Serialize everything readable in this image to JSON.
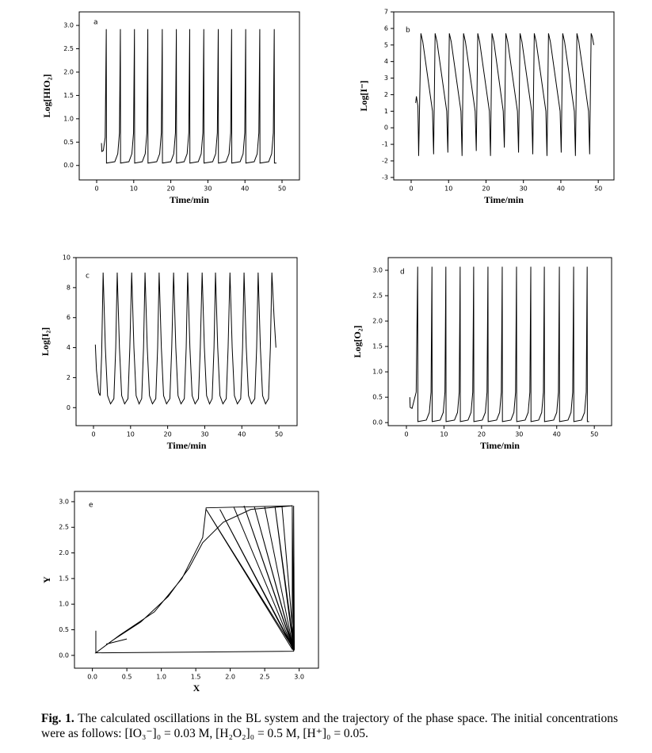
{
  "chart_data": [
    {
      "type": "line",
      "panel_label": "a",
      "xlabel": "Time/min",
      "ylabel": "Log[HIO₂]",
      "color": "#000000",
      "xlim": [
        -4.7,
        54.7
      ],
      "ylim": [
        -0.31,
        3.29
      ],
      "xticks": [
        0,
        10,
        20,
        30,
        40,
        50
      ],
      "yticks": [
        {
          "value": 0,
          "label": "0.0"
        },
        0.5,
        {
          "value": 1,
          "label": "1.0"
        },
        1.5,
        {
          "value": 2,
          "label": "2.0"
        },
        2.5,
        {
          "value": 3,
          "label": "3.0"
        }
      ],
      "x": [
        1.3,
        1.4,
        1.8,
        2.3,
        2.6,
        2.65,
        4.9,
        5.7,
        6.15,
        6.4,
        6.45,
        8.7,
        9.5,
        9.95,
        10.2,
        10.25,
        12.3,
        13.1,
        13.55,
        13.8,
        13.85,
        16.2,
        17.0,
        17.45,
        17.7,
        17.75,
        20.0,
        20.8,
        21.25,
        21.5,
        21.55,
        23.6,
        24.4,
        24.85,
        25.1,
        25.15,
        27.4,
        28.2,
        28.65,
        28.9,
        28.95,
        31.3,
        32.1,
        32.55,
        32.8,
        32.85,
        34.9,
        35.7,
        36.15,
        36.4,
        36.45,
        38.7,
        39.5,
        39.95,
        40.2,
        40.25,
        42.5,
        43.3,
        43.75,
        44.0,
        44.05,
        46.4,
        47.2,
        47.65,
        47.9,
        47.95,
        48.5
      ],
      "values": [
        0.48,
        0.3,
        0.32,
        0.6,
        2.92,
        0.05,
        0.08,
        0.25,
        0.7,
        2.92,
        0.05,
        0.08,
        0.25,
        0.7,
        2.92,
        0.05,
        0.08,
        0.25,
        0.7,
        2.92,
        0.05,
        0.08,
        0.25,
        0.7,
        2.92,
        0.05,
        0.08,
        0.25,
        0.7,
        2.92,
        0.05,
        0.08,
        0.25,
        0.7,
        2.92,
        0.05,
        0.08,
        0.25,
        0.7,
        2.92,
        0.05,
        0.08,
        0.25,
        0.7,
        2.92,
        0.05,
        0.08,
        0.25,
        0.7,
        2.92,
        0.05,
        0.08,
        0.25,
        0.7,
        2.92,
        0.05,
        0.08,
        0.25,
        0.7,
        2.92,
        0.05,
        0.08,
        0.25,
        0.7,
        2.92,
        0.05,
        0.05
      ]
    },
    {
      "type": "line",
      "panel_label": "b",
      "xlabel": "Time/min",
      "ylabel": "Log[I⁻]",
      "color": "#000000",
      "xlim": [
        -4.66,
        54.2
      ],
      "ylim": [
        -3.15,
        7
      ],
      "xticks": [
        0,
        10,
        20,
        30,
        40,
        50
      ],
      "yticks": [
        -3,
        -2,
        -1,
        0,
        1,
        2,
        3,
        4,
        5,
        6,
        7
      ],
      "x": [
        1.2,
        1.4,
        1.8,
        2.0,
        2.6,
        3.1,
        5.7,
        6.0,
        6.4,
        6.9,
        9.5,
        9.8,
        10.2,
        10.7,
        13.3,
        13.6,
        14.0,
        14.5,
        17.1,
        17.4,
        17.8,
        18.3,
        20.9,
        21.2,
        21.6,
        22.1,
        24.6,
        24.9,
        25.3,
        25.8,
        28.4,
        28.7,
        29.1,
        29.6,
        32.2,
        32.5,
        32.9,
        33.4,
        36.0,
        36.3,
        36.7,
        37.2,
        39.8,
        40.1,
        40.5,
        41.0,
        43.6,
        43.9,
        44.3,
        44.8,
        47.4,
        47.7,
        48.1,
        48.4,
        48.8
      ],
      "values": [
        1.5,
        1.9,
        1.3,
        -1.7,
        5.7,
        5.2,
        1.0,
        -1.6,
        5.7,
        5.2,
        1.0,
        -1.5,
        5.7,
        5.2,
        1.0,
        -1.7,
        5.7,
        5.2,
        1.0,
        -1.4,
        5.7,
        5.2,
        1.0,
        -1.7,
        5.7,
        5.2,
        1.0,
        -1.2,
        5.7,
        5.2,
        1.0,
        -1.5,
        5.7,
        5.2,
        1.0,
        -1.6,
        5.7,
        5.2,
        1.0,
        -1.7,
        5.7,
        5.2,
        1.0,
        -1.5,
        5.7,
        5.2,
        1.0,
        -1.7,
        5.7,
        5.2,
        1.0,
        -1.6,
        5.7,
        5.5,
        5.0
      ]
    },
    {
      "type": "line",
      "panel_label": "c",
      "xlabel": "Time/min",
      "ylabel": "Log[I₂]",
      "color": "#000000",
      "xlim": [
        -4.7,
        54.9
      ],
      "ylim": [
        -1.2,
        10
      ],
      "xticks": [
        0,
        10,
        20,
        30,
        40,
        50
      ],
      "yticks": [
        0,
        2,
        4,
        6,
        8,
        10
      ],
      "x": [
        0.5,
        0.8,
        1.4,
        1.8,
        2.2,
        2.6,
        3.2,
        3.8,
        4.6,
        5.5,
        6.0,
        6.4,
        7.0,
        7.6,
        8.4,
        9.3,
        9.8,
        10.3,
        10.9,
        11.5,
        12.3,
        13.0,
        13.5,
        13.9,
        14.5,
        15.1,
        15.9,
        16.8,
        17.3,
        17.7,
        18.3,
        18.9,
        19.7,
        20.6,
        21.1,
        21.6,
        22.2,
        22.8,
        23.6,
        24.5,
        25.0,
        25.4,
        26.0,
        26.6,
        27.4,
        28.3,
        28.8,
        29.3,
        29.9,
        30.5,
        31.3,
        32.0,
        32.5,
        32.9,
        33.5,
        34.1,
        34.9,
        35.8,
        36.3,
        36.8,
        37.4,
        38.0,
        38.8,
        39.7,
        40.2,
        40.6,
        41.2,
        41.8,
        42.6,
        43.5,
        44.0,
        44.4,
        45.0,
        45.6,
        46.4,
        47.2,
        47.7,
        48.1,
        48.7,
        49.2
      ],
      "values": [
        4.2,
        2.5,
        1.0,
        0.8,
        3.5,
        9.0,
        4,
        0.8,
        0.25,
        0.6,
        4,
        9.0,
        4,
        0.8,
        0.25,
        0.6,
        4,
        9.0,
        4,
        0.8,
        0.25,
        0.6,
        4,
        9.0,
        4,
        0.8,
        0.25,
        0.6,
        4,
        9.0,
        4,
        0.8,
        0.25,
        0.6,
        4,
        9.0,
        4,
        0.8,
        0.25,
        0.6,
        4,
        9.0,
        4,
        0.8,
        0.25,
        0.6,
        4,
        9.0,
        4,
        0.8,
        0.25,
        0.6,
        4,
        9.0,
        4,
        0.8,
        0.25,
        0.6,
        4,
        9.0,
        4,
        0.8,
        0.25,
        0.6,
        4,
        9.0,
        4,
        0.8,
        0.25,
        0.6,
        4,
        9.0,
        4,
        0.8,
        0.25,
        0.6,
        4,
        9.0,
        6,
        4.0
      ]
    },
    {
      "type": "line",
      "panel_label": "d",
      "xlabel": "Time/min",
      "ylabel": "Log[O₂]",
      "color": "#000000",
      "xlim": [
        -4.85,
        54.6
      ],
      "ylim": [
        -0.06,
        3.25
      ],
      "xticks": [
        0,
        10,
        20,
        30,
        40,
        50
      ],
      "yticks": [
        {
          "value": 0,
          "label": "0.0"
        },
        0.5,
        {
          "value": 1,
          "label": "1.0"
        },
        1.5,
        {
          "value": 2,
          "label": "2.0"
        },
        2.5,
        {
          "value": 3,
          "label": "3.0"
        }
      ],
      "x": [
        0.9,
        1.0,
        1.5,
        2.6,
        3.0,
        3.05,
        5.3,
        6.1,
        6.55,
        6.8,
        6.85,
        9.0,
        9.8,
        10.25,
        10.5,
        10.55,
        12.8,
        13.6,
        14.05,
        14.3,
        14.35,
        16.4,
        17.2,
        17.65,
        17.9,
        17.95,
        20.2,
        21.0,
        21.45,
        21.7,
        21.75,
        24.0,
        24.8,
        25.25,
        25.5,
        25.55,
        27.8,
        28.6,
        29.05,
        29.3,
        29.35,
        31.6,
        32.4,
        32.85,
        33.1,
        33.15,
        35.2,
        36.0,
        36.45,
        36.7,
        36.75,
        39.2,
        40.0,
        40.45,
        40.7,
        40.75,
        43.0,
        43.8,
        44.25,
        44.5,
        44.55,
        46.6,
        47.4,
        47.85,
        48.1,
        48.15,
        48.6
      ],
      "values": [
        0.5,
        0.3,
        0.28,
        0.6,
        3.07,
        0.02,
        0.05,
        0.2,
        0.6,
        3.07,
        0.02,
        0.05,
        0.2,
        0.6,
        3.07,
        0.02,
        0.05,
        0.2,
        0.6,
        3.07,
        0.02,
        0.05,
        0.2,
        0.6,
        3.07,
        0.02,
        0.05,
        0.2,
        0.6,
        3.07,
        0.02,
        0.05,
        0.2,
        0.6,
        3.07,
        0.02,
        0.05,
        0.2,
        0.6,
        3.07,
        0.02,
        0.05,
        0.2,
        0.6,
        3.07,
        0.02,
        0.05,
        0.2,
        0.6,
        3.07,
        0.02,
        0.05,
        0.2,
        0.6,
        3.07,
        0.02,
        0.05,
        0.2,
        0.6,
        3.07,
        0.02,
        0.05,
        0.2,
        0.6,
        3.07,
        0.02,
        0.02
      ]
    },
    {
      "type": "line",
      "panel_label": "e",
      "xlabel": "X",
      "ylabel": "Y",
      "color": "#000000",
      "xlim": [
        -0.26,
        3.28
      ],
      "ylim": [
        -0.25,
        3.2
      ],
      "xticks": [
        {
          "value": 0,
          "label": "0.0"
        },
        0.5,
        {
          "value": 1,
          "label": "1.0"
        },
        1.5,
        {
          "value": 2,
          "label": "2.0"
        },
        2.5,
        {
          "value": 3,
          "label": "3.0"
        }
      ],
      "yticks": [
        {
          "value": 0,
          "label": "0.0"
        },
        0.5,
        {
          "value": 1,
          "label": "1.0"
        },
        1.5,
        {
          "value": 2,
          "label": "2.0"
        },
        2.5,
        {
          "value": 3,
          "label": "3.0"
        }
      ],
      "x": [
        0.05,
        0.05,
        0.3,
        0.7,
        1.1,
        1.4,
        1.6,
        1.9,
        2.3,
        2.9,
        2.92,
        0.05,
        0.4,
        0.9,
        1.3,
        1.6,
        1.65,
        2.9,
        2.9,
        1.65,
        2.93,
        1.85,
        2.92,
        2.05,
        2.92,
        2.2,
        2.92,
        2.35,
        2.92,
        2.5,
        2.92,
        2.65,
        2.93,
        2.75,
        2.93,
        2.92,
        2.92,
        0.05,
        null,
        0.2,
        0.5
      ],
      "values": [
        0.48,
        0.05,
        0.3,
        0.65,
        1.15,
        1.7,
        2.2,
        2.6,
        2.85,
        2.92,
        0.08,
        0.05,
        0.4,
        0.85,
        1.5,
        2.3,
        2.88,
        2.92,
        0.12,
        2.85,
        0.1,
        2.85,
        0.1,
        2.9,
        0.1,
        2.92,
        0.12,
        2.9,
        0.1,
        2.9,
        0.1,
        2.9,
        0.12,
        2.92,
        0.1,
        2.92,
        0.08,
        0.05,
        null,
        0.22,
        0.32
      ]
    }
  ],
  "caption": {
    "label": "Fig. 1.",
    "text": "The calculated oscillations in the BL system and the trajectory of the phase space. The initial concentrations were as follows: [IO₃⁻]₀ = 0.03 M, [H₂O₂]₀ = 0.5 M, [H⁺]₀ = 0.05."
  }
}
